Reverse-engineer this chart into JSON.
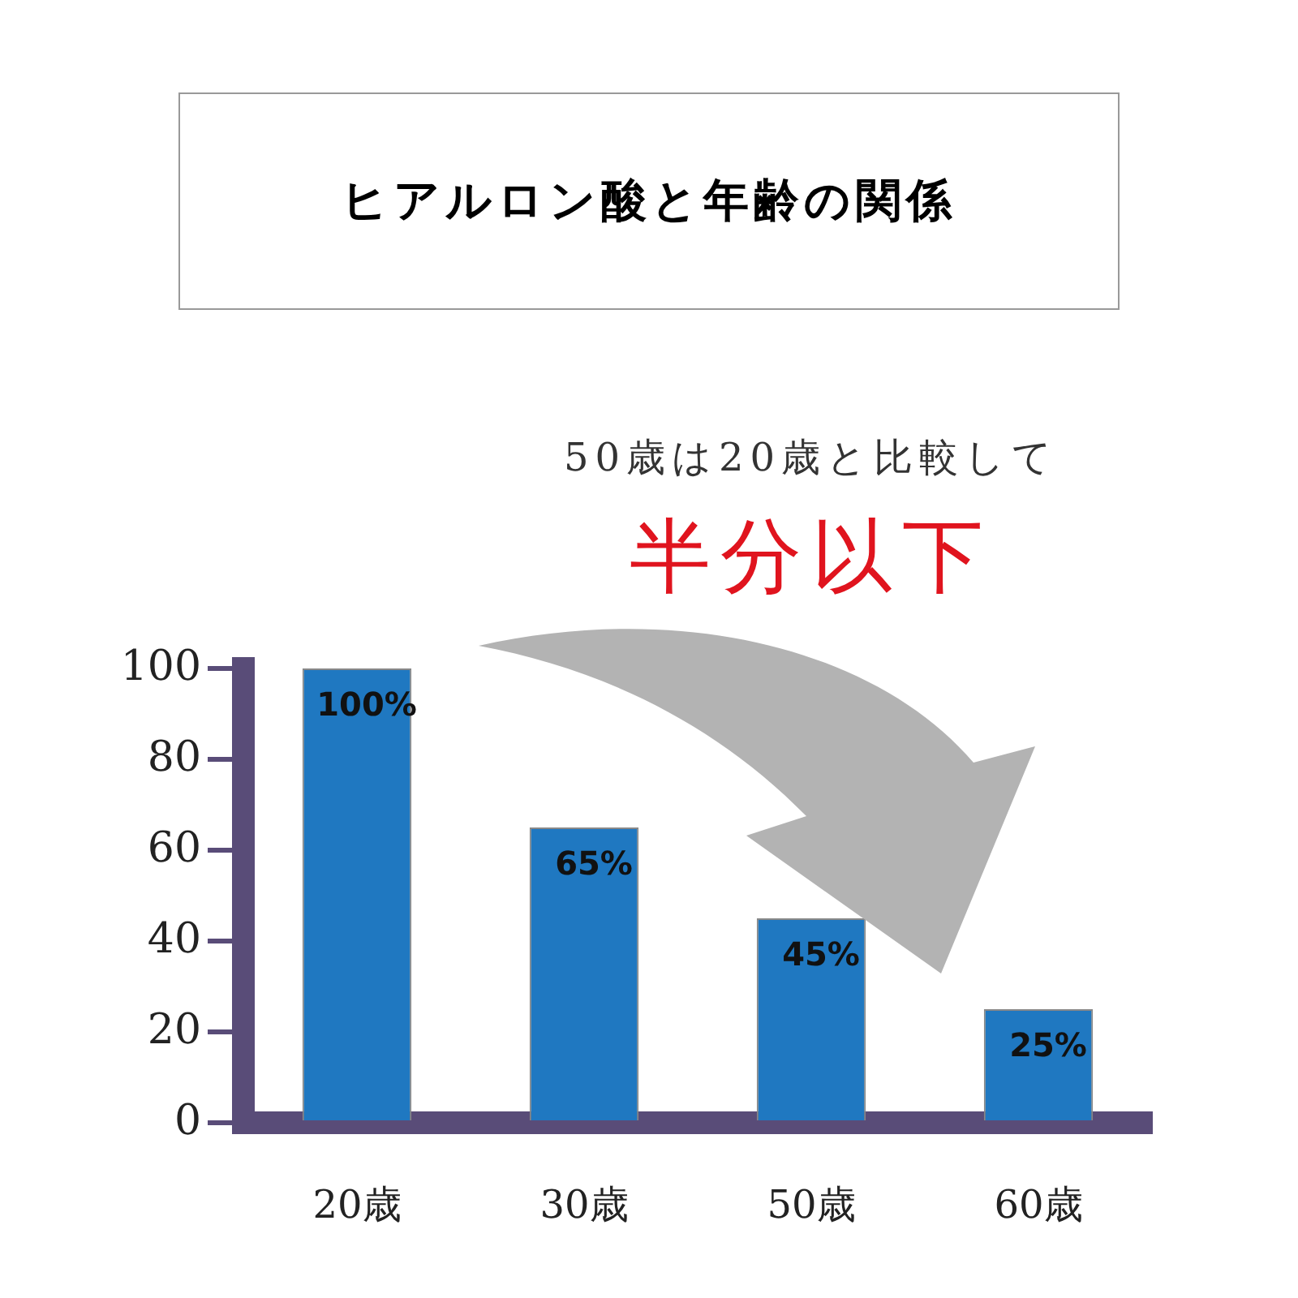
{
  "chart_data": {
    "type": "bar",
    "title": "ヒアルロン酸と年齢の関係",
    "categories": [
      "20歳",
      "30歳",
      "50歳",
      "60歳"
    ],
    "values": [
      100,
      65,
      45,
      25
    ],
    "value_labels": [
      "100%",
      "65%",
      "45%",
      "25%"
    ],
    "color": "#1f78c1",
    "ylim": [
      0,
      100
    ],
    "yticks": [
      0,
      20,
      40,
      60,
      80,
      100
    ],
    "annotations": [
      "50歳は20歳と比較して",
      "半分以下"
    ]
  }
}
